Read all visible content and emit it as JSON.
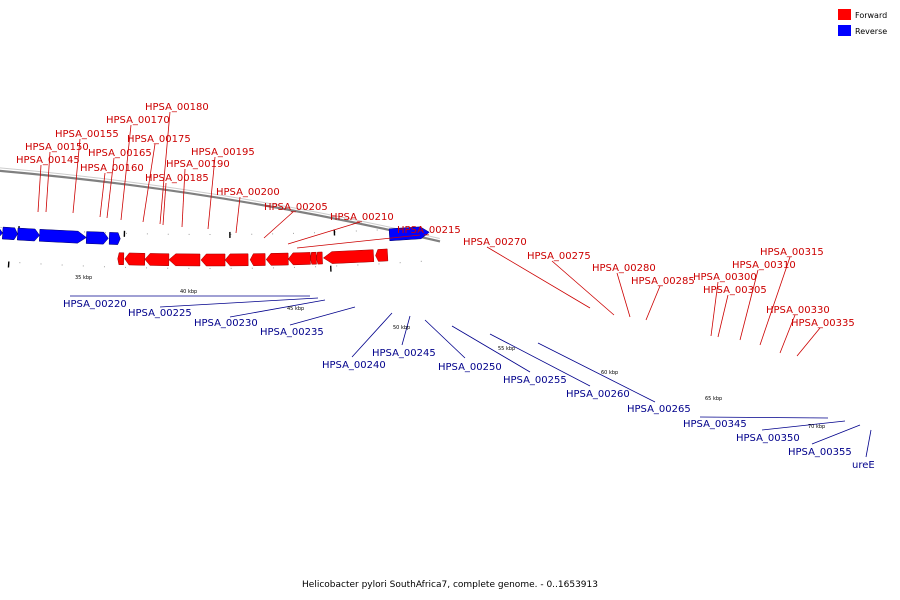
{
  "caption": "Helicobacter pylori SouthAfrica7, complete genome. - 0..1653913",
  "legend": [
    {
      "label": "Forward",
      "color": "#ff0000"
    },
    {
      "label": "Reverse",
      "color": "#0000ff"
    }
  ],
  "colors": {
    "forward_fill": "#ff0000",
    "forward_label": "#cc0000",
    "reverse_fill": "#0000ff",
    "reverse_label": "#00008b",
    "backbone": "#808080"
  },
  "ticks": [
    "35 kbp",
    "40 kbp",
    "45 kbp",
    "50 kbp",
    "55 kbp",
    "60 kbp",
    "65 kbp",
    "70 kbp"
  ],
  "genes": [
    {
      "label": "HPSA_00145",
      "strand": "forward"
    },
    {
      "label": "HPSA_00150",
      "strand": "forward"
    },
    {
      "label": "HPSA_00155",
      "strand": "forward"
    },
    {
      "label": "HPSA_00160",
      "strand": "forward"
    },
    {
      "label": "HPSA_00165",
      "strand": "forward"
    },
    {
      "label": "HPSA_00170",
      "strand": "forward"
    },
    {
      "label": "HPSA_00175",
      "strand": "forward"
    },
    {
      "label": "HPSA_00180",
      "strand": "forward"
    },
    {
      "label": "HPSA_00185",
      "strand": "forward"
    },
    {
      "label": "HPSA_00190",
      "strand": "forward"
    },
    {
      "label": "HPSA_00195",
      "strand": "forward"
    },
    {
      "label": "HPSA_00200",
      "strand": "forward"
    },
    {
      "label": "HPSA_00205",
      "strand": "forward"
    },
    {
      "label": "HPSA_00210",
      "strand": "forward"
    },
    {
      "label": "HPSA_00215",
      "strand": "forward"
    },
    {
      "label": "HPSA_00270",
      "strand": "forward"
    },
    {
      "label": "HPSA_00275",
      "strand": "forward"
    },
    {
      "label": "HPSA_00280",
      "strand": "forward"
    },
    {
      "label": "HPSA_00285",
      "strand": "forward"
    },
    {
      "label": "HPSA_00300",
      "strand": "forward"
    },
    {
      "label": "HPSA_00305",
      "strand": "forward"
    },
    {
      "label": "HPSA_00310",
      "strand": "forward"
    },
    {
      "label": "HPSA_00315",
      "strand": "forward"
    },
    {
      "label": "HPSA_00330",
      "strand": "forward"
    },
    {
      "label": "HPSA_00335",
      "strand": "forward"
    },
    {
      "label": "HPSA_00220",
      "strand": "reverse"
    },
    {
      "label": "HPSA_00225",
      "strand": "reverse"
    },
    {
      "label": "HPSA_00230",
      "strand": "reverse"
    },
    {
      "label": "HPSA_00235",
      "strand": "reverse"
    },
    {
      "label": "HPSA_00240",
      "strand": "reverse"
    },
    {
      "label": "HPSA_00245",
      "strand": "reverse"
    },
    {
      "label": "HPSA_00250",
      "strand": "reverse"
    },
    {
      "label": "HPSA_00255",
      "strand": "reverse"
    },
    {
      "label": "HPSA_00260",
      "strand": "reverse"
    },
    {
      "label": "HPSA_00265",
      "strand": "reverse"
    },
    {
      "label": "HPSA_00345",
      "strand": "reverse"
    },
    {
      "label": "HPSA_00350",
      "strand": "reverse"
    },
    {
      "label": "HPSA_00355",
      "strand": "reverse"
    },
    {
      "label": "ureE",
      "strand": "reverse"
    }
  ]
}
